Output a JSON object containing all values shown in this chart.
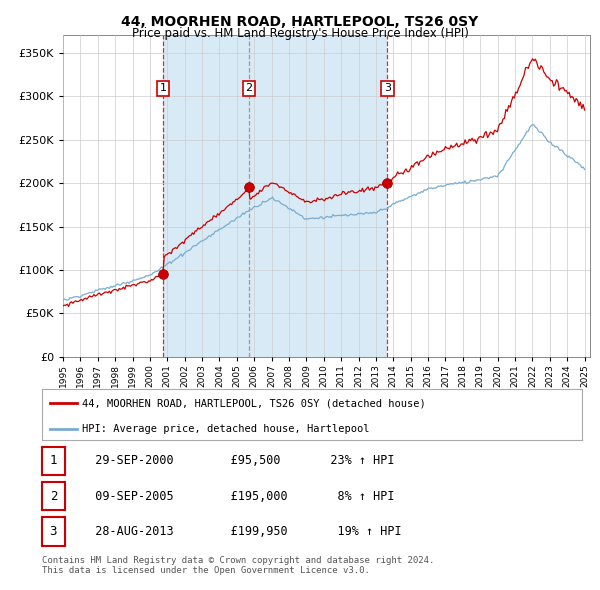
{
  "title": "44, MOORHEN ROAD, HARTLEPOOL, TS26 0SY",
  "subtitle": "Price paid vs. HM Land Registry's House Price Index (HPI)",
  "ytick_values": [
    0,
    50000,
    100000,
    150000,
    200000,
    250000,
    300000,
    350000
  ],
  "ylim": [
    0,
    370000
  ],
  "sale_dates": [
    2000.75,
    2005.69,
    2013.65
  ],
  "sale_prices": [
    95500,
    195000,
    199950
  ],
  "sale_labels": [
    "1",
    "2",
    "3"
  ],
  "red_line_color": "#cc0000",
  "blue_line_color": "#7aadcf",
  "shade_color": "#d8eaf5",
  "sale_marker_color": "#cc0000",
  "legend_label_red": "44, MOORHEN ROAD, HARTLEPOOL, TS26 0SY (detached house)",
  "legend_label_blue": "HPI: Average price, detached house, Hartlepool",
  "table_rows": [
    {
      "num": "1",
      "date": "29-SEP-2000",
      "price": "£95,500",
      "change": "23% ↑ HPI"
    },
    {
      "num": "2",
      "date": "09-SEP-2005",
      "price": "£195,000",
      "change": "8% ↑ HPI"
    },
    {
      "num": "3",
      "date": "28-AUG-2013",
      "price": "£199,950",
      "change": "19% ↑ HPI"
    }
  ],
  "footnote1": "Contains HM Land Registry data © Crown copyright and database right 2024.",
  "footnote2": "This data is licensed under the Open Government Licence v3.0.",
  "background_color": "#ffffff",
  "grid_color": "#cccccc"
}
